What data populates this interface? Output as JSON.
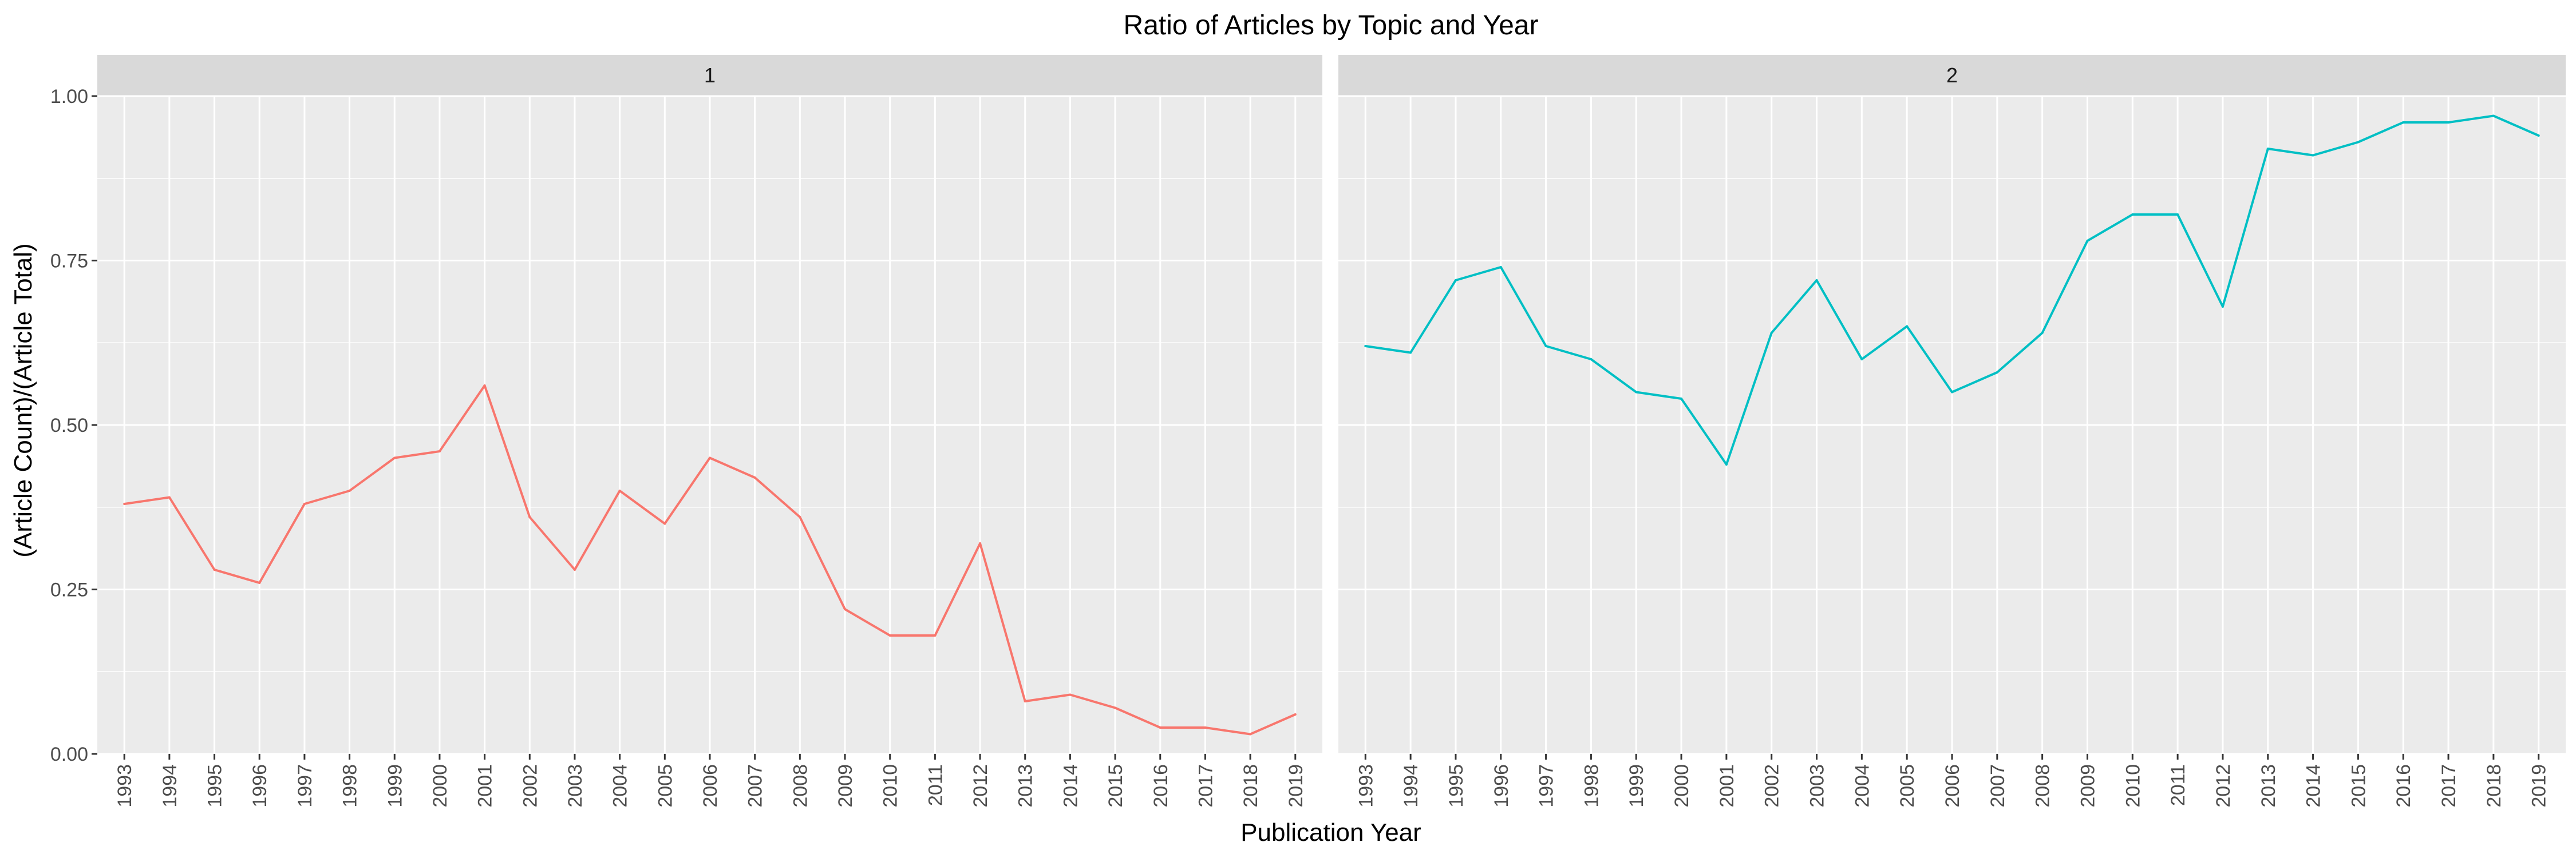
{
  "chart_data": {
    "type": "line",
    "title": "Ratio of Articles by Topic and Year",
    "xlabel": "Publication Year",
    "ylabel": "(Article Count)/(Article Total)",
    "ylim": [
      0,
      1
    ],
    "yticks": [
      "0.00",
      "0.25",
      "0.50",
      "0.75",
      "1.00"
    ],
    "categories": [
      "1993",
      "1994",
      "1995",
      "1996",
      "1997",
      "1998",
      "1999",
      "2000",
      "2001",
      "2002",
      "2003",
      "2004",
      "2005",
      "2006",
      "2007",
      "2008",
      "2009",
      "2010",
      "2011",
      "2012",
      "2013",
      "2014",
      "2015",
      "2016",
      "2017",
      "2018",
      "2019"
    ],
    "grid": true,
    "legend": "none",
    "panels": [
      {
        "strip": "1",
        "color": "#F8766D",
        "values": [
          0.38,
          0.39,
          0.28,
          0.26,
          0.38,
          0.4,
          0.45,
          0.46,
          0.56,
          0.36,
          0.28,
          0.4,
          0.35,
          0.45,
          0.42,
          0.36,
          0.22,
          0.18,
          0.18,
          0.32,
          0.08,
          0.09,
          0.07,
          0.04,
          0.04,
          0.03,
          0.06
        ]
      },
      {
        "strip": "2",
        "color": "#00BFC4",
        "values": [
          0.62,
          0.61,
          0.72,
          0.74,
          0.62,
          0.6,
          0.55,
          0.54,
          0.44,
          0.64,
          0.72,
          0.6,
          0.65,
          0.55,
          0.58,
          0.64,
          0.78,
          0.82,
          0.82,
          0.68,
          0.92,
          0.91,
          0.93,
          0.96,
          0.96,
          0.97,
          0.94
        ]
      }
    ],
    "panel_background": "#EBEBEB",
    "strip_background": "#D9D9D9"
  }
}
